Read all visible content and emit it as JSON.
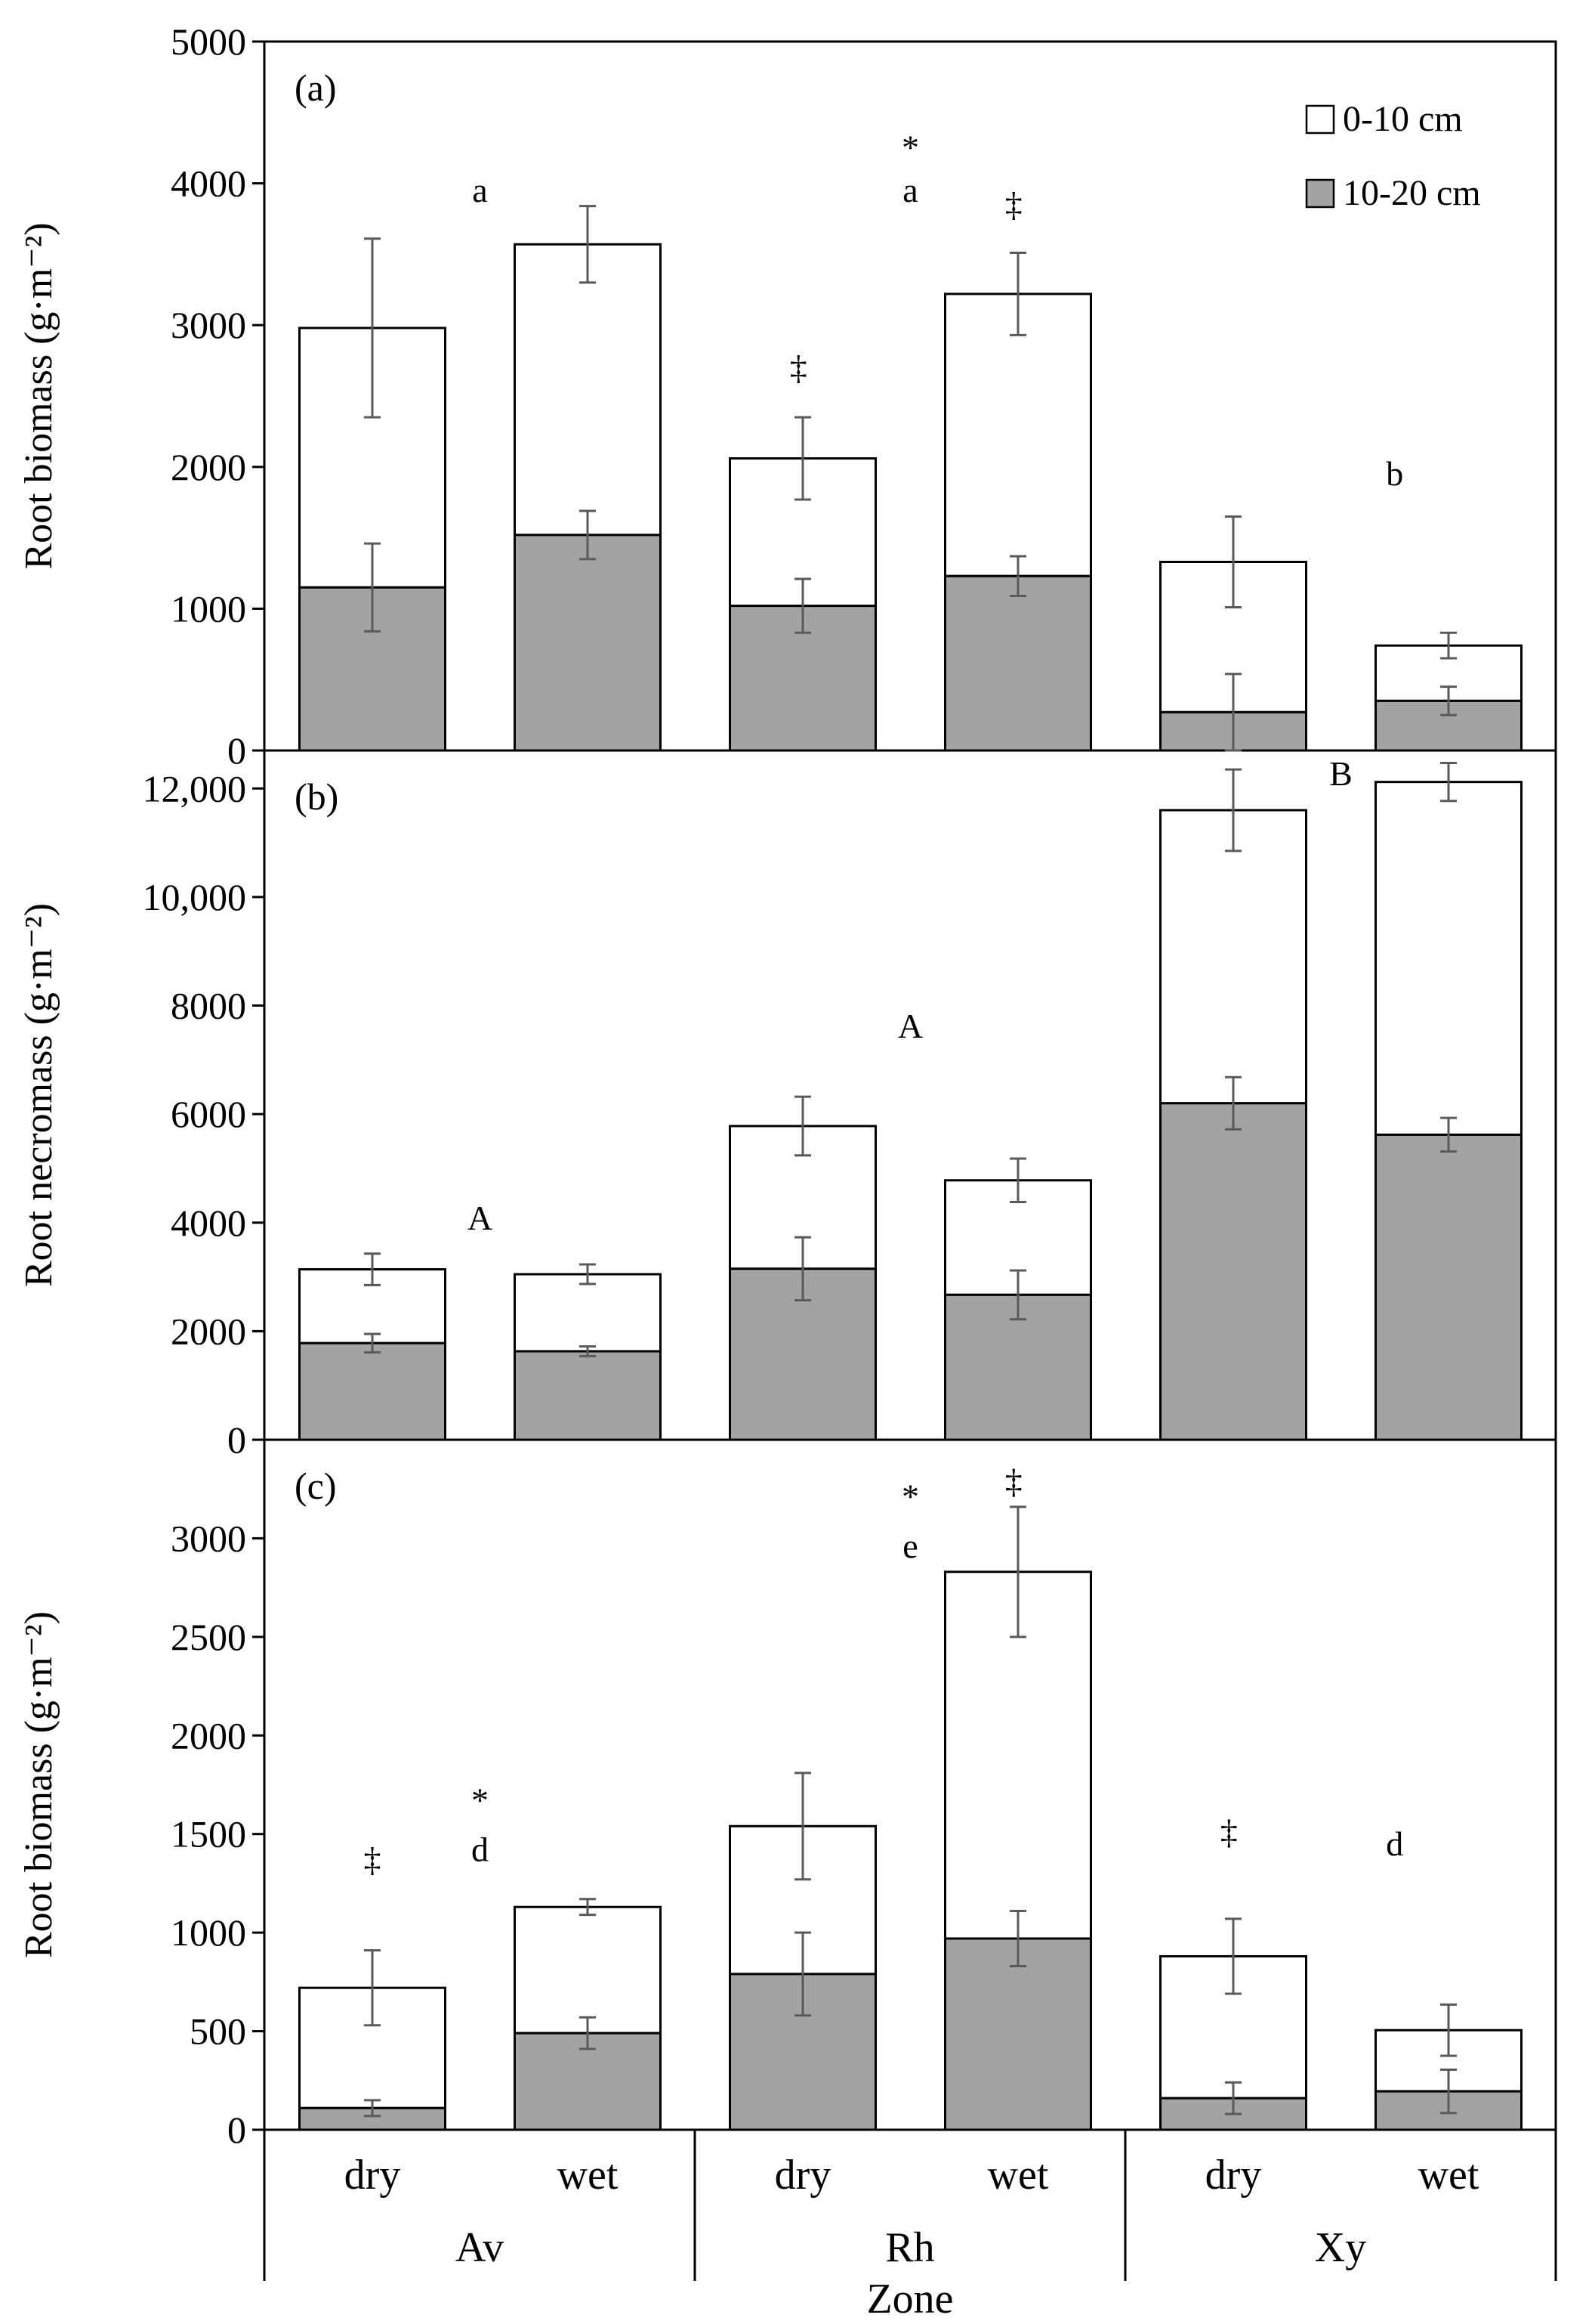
{
  "chart_data": [
    {
      "type": "bar",
      "stacked": true,
      "panel": "(a)",
      "ylabel": "Root biomass (g·m⁻²)",
      "ylim": [
        0,
        5000
      ],
      "yticks": [
        0,
        1000,
        2000,
        3000,
        4000,
        5000
      ],
      "ytick_labels": [
        "0",
        "1000",
        "2000",
        "3000",
        "4000",
        "5000"
      ],
      "categories": [
        "Av dry",
        "Av wet",
        "Rh dry",
        "Rh wet",
        "Xy dry",
        "Xy wet"
      ],
      "series": [
        {
          "name": "10-20 cm",
          "values": [
            1150,
            1520,
            1020,
            1230,
            270,
            350
          ],
          "errors": [
            310,
            170,
            190,
            140,
            270,
            100
          ]
        },
        {
          "name": "0-10 cm",
          "values": [
            1830,
            2050,
            1040,
            1990,
            1060,
            390
          ],
          "errors": [
            630,
            270,
            290,
            290,
            320,
            90
          ]
        }
      ],
      "annotations": [
        {
          "text": "a",
          "x": 0.5,
          "y": 3950
        },
        {
          "text": "*",
          "x": 2.5,
          "y": 4250
        },
        {
          "text": "a",
          "x": 2.5,
          "y": 3950
        },
        {
          "text": "‡",
          "x": 1.98,
          "y": 2700
        },
        {
          "text": "‡",
          "x": 2.98,
          "y": 3850
        },
        {
          "text": "b",
          "x": 4.75,
          "y": 1950
        }
      ],
      "legend": [
        "0-10 cm",
        "10-20 cm"
      ]
    },
    {
      "type": "bar",
      "stacked": true,
      "panel": "(b)",
      "ylabel": "Root necromass (g·m⁻²)",
      "ylim": [
        0,
        12700
      ],
      "yticks": [
        0,
        2000,
        4000,
        6000,
        8000,
        10000,
        12000
      ],
      "ytick_labels": [
        "0",
        "2000",
        "4000",
        "6000",
        "8000",
        "10,000",
        "12,000"
      ],
      "categories": [
        "Av dry",
        "Av wet",
        "Rh dry",
        "Rh wet",
        "Xy dry",
        "Xy wet"
      ],
      "series": [
        {
          "name": "10-20 cm",
          "values": [
            1780,
            1630,
            3150,
            2670,
            6200,
            5620
          ],
          "errors": [
            170,
            90,
            580,
            450,
            480,
            310
          ]
        },
        {
          "name": "0-10 cm",
          "values": [
            1360,
            1420,
            2630,
            2110,
            5400,
            6500
          ],
          "errors": [
            290,
            180,
            540,
            400,
            750,
            350
          ]
        }
      ],
      "annotations": [
        {
          "text": "A",
          "x": 0.5,
          "y": 4080
        },
        {
          "text": "A",
          "x": 2.5,
          "y": 7620
        },
        {
          "text": "B",
          "x": 4.5,
          "y": 12270
        }
      ]
    },
    {
      "type": "bar",
      "stacked": true,
      "panel": "(c)",
      "ylabel": "Root biomass (g·m⁻²)",
      "ylim": [
        0,
        3500
      ],
      "yticks": [
        0,
        500,
        1000,
        1500,
        2000,
        2500,
        3000
      ],
      "ytick_labels": [
        "0",
        "500",
        "1000",
        "1500",
        "2000",
        "2500",
        "3000"
      ],
      "categories": [
        "Av dry",
        "Av wet",
        "Rh dry",
        "Rh wet",
        "Xy dry",
        "Xy wet"
      ],
      "series": [
        {
          "name": "10-20 cm",
          "values": [
            110,
            490,
            790,
            970,
            160,
            195
          ],
          "errors": [
            40,
            80,
            210,
            140,
            80,
            110
          ]
        },
        {
          "name": "0-10 cm",
          "values": [
            610,
            640,
            750,
            1860,
            720,
            310
          ],
          "errors": [
            190,
            40,
            270,
            330,
            190,
            130
          ]
        }
      ],
      "annotations": [
        {
          "text": "*",
          "x": 0.5,
          "y": 1670
        },
        {
          "text": "d",
          "x": 0.5,
          "y": 1420
        },
        {
          "text": "‡",
          "x": 0.0,
          "y": 1370
        },
        {
          "text": "*",
          "x": 2.5,
          "y": 3210
        },
        {
          "text": "e",
          "x": 2.5,
          "y": 2960
        },
        {
          "text": "‡",
          "x": 2.98,
          "y": 3290
        },
        {
          "text": "‡",
          "x": 3.98,
          "y": 1510
        },
        {
          "text": "d",
          "x": 4.75,
          "y": 1450
        }
      ]
    }
  ],
  "x_axis": {
    "group_labels": [
      "dry",
      "wet",
      "dry",
      "wet",
      "dry",
      "wet"
    ],
    "zones": [
      "Av",
      "Rh",
      "Xy"
    ],
    "title": "Zone"
  },
  "colors": {
    "top_segment": "#ffffff",
    "bottom_segment": "#a3a3a3",
    "bar_border": "#000000",
    "error_bar": "#5a5a5a",
    "axis": "#000000"
  }
}
